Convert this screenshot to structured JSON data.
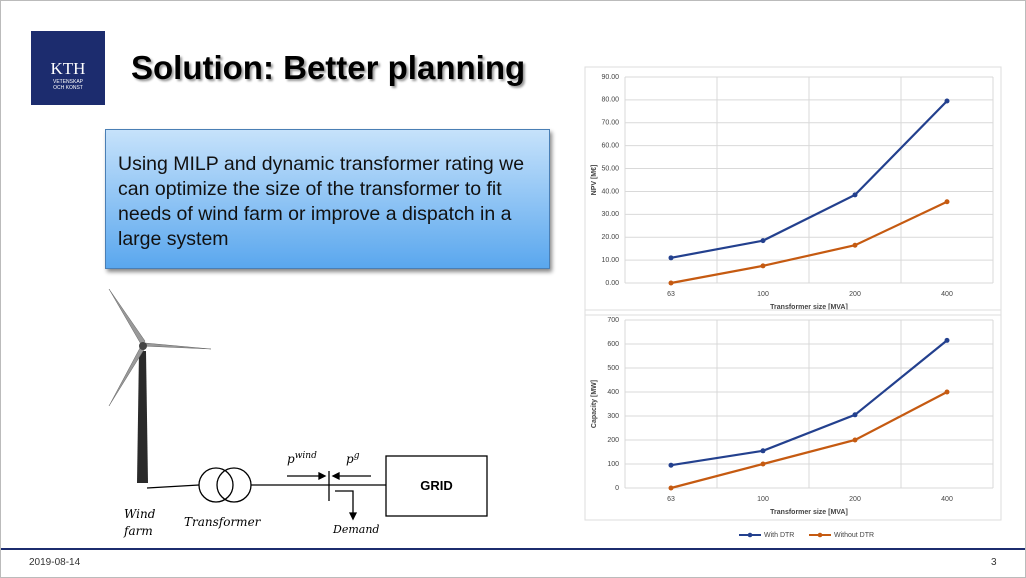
{
  "header": {
    "logo_lines": [
      "KTH",
      "VETENSKAP",
      "OCH KONST"
    ],
    "title": "Solution: Better planning"
  },
  "callout": "Using MILP and dynamic transformer rating we can optimize the size of the transformer to fit needs of wind farm or improve a dispatch in a large system",
  "diagram": {
    "wind_farm": "Wind farm",
    "transformer": "Transformer",
    "p_wind": {
      "base": "p",
      "sup": "wind"
    },
    "p_g": {
      "base": "p",
      "sup": "g"
    },
    "grid": "GRID",
    "demand": "Demand"
  },
  "chart_data": [
    {
      "type": "line",
      "x_label": "Transformer size [MVA]",
      "y_label": "NPV [M€]",
      "categories": [
        "63",
        "100",
        "200",
        "400"
      ],
      "series": [
        {
          "color": "#23408e",
          "values": [
            11,
            18.5,
            38.5,
            79.5
          ]
        },
        {
          "color": "#c55a11",
          "values": [
            0,
            7.5,
            16.5,
            35.5
          ]
        }
      ],
      "ylim": [
        0,
        90
      ],
      "yticks": [
        {
          "value": 0,
          "label": "0.00"
        },
        {
          "value": 10,
          "label": "10.00"
        },
        {
          "value": 20,
          "label": "20.00"
        },
        {
          "value": 30,
          "label": "30.00"
        },
        {
          "value": 40,
          "label": "40.00"
        },
        {
          "value": 50,
          "label": "50.00"
        },
        {
          "value": 60,
          "label": "60.00"
        },
        {
          "value": 70,
          "label": "70.00"
        },
        {
          "value": 80,
          "label": "80.00"
        },
        {
          "value": 90,
          "label": "90.00"
        }
      ],
      "grid": true
    },
    {
      "type": "line",
      "x_label": "Transformer size [MVA]",
      "y_label": "Capacity [MW]",
      "categories": [
        "63",
        "100",
        "200",
        "400"
      ],
      "series": [
        {
          "name": "With DTR",
          "color": "#23408e",
          "values": [
            95,
            155,
            305,
            615
          ]
        },
        {
          "name": "Without DTR",
          "color": "#c55a11",
          "values": [
            0,
            100,
            200,
            400
          ]
        }
      ],
      "ylim": [
        0,
        700
      ],
      "yticks": [
        0,
        100,
        200,
        300,
        400,
        500,
        600,
        700
      ],
      "grid": true,
      "legend": "bottom"
    }
  ],
  "footer": {
    "date": "2019-08-14",
    "page": "3"
  }
}
